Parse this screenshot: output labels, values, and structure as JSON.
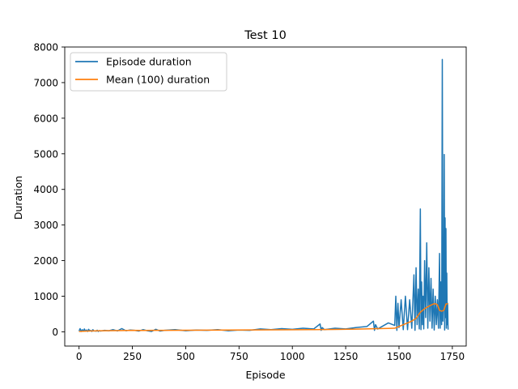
{
  "chart_data": {
    "type": "line",
    "title": "Test 10",
    "xlabel": "Episode",
    "ylabel": "Duration",
    "xlim": [
      -67,
      1815
    ],
    "ylim": [
      -400,
      8000
    ],
    "xticks": [
      0,
      250,
      500,
      750,
      1000,
      1250,
      1500,
      1750
    ],
    "yticks": [
      0,
      1000,
      2000,
      3000,
      4000,
      5000,
      6000,
      7000,
      8000
    ],
    "legend_position": "upper-left",
    "grid": false,
    "series": [
      {
        "name": "Episode duration",
        "color": "#1f77b4",
        "x": [
          0,
          5,
          10,
          15,
          20,
          25,
          30,
          35,
          40,
          45,
          50,
          55,
          60,
          65,
          70,
          75,
          80,
          85,
          90,
          95,
          100,
          120,
          140,
          160,
          180,
          200,
          220,
          240,
          260,
          280,
          300,
          320,
          340,
          360,
          380,
          400,
          450,
          500,
          550,
          600,
          650,
          700,
          750,
          800,
          850,
          900,
          950,
          1000,
          1050,
          1100,
          1130,
          1135,
          1140,
          1150,
          1200,
          1250,
          1300,
          1350,
          1380,
          1385,
          1390,
          1400,
          1450,
          1480,
          1485,
          1490,
          1495,
          1500,
          1510,
          1520,
          1530,
          1540,
          1550,
          1560,
          1570,
          1575,
          1580,
          1585,
          1590,
          1595,
          1600,
          1603,
          1606,
          1610,
          1613,
          1616,
          1620,
          1625,
          1630,
          1635,
          1640,
          1645,
          1650,
          1655,
          1660,
          1665,
          1670,
          1675,
          1680,
          1685,
          1690,
          1693,
          1696,
          1700,
          1703,
          1706,
          1710,
          1712,
          1714,
          1716,
          1718,
          1720,
          1722,
          1724,
          1726,
          1728,
          1730
        ],
        "y": [
          20,
          90,
          10,
          60,
          15,
          80,
          20,
          50,
          10,
          70,
          25,
          40,
          10,
          60,
          20,
          30,
          15,
          45,
          10,
          35,
          20,
          40,
          30,
          60,
          25,
          90,
          30,
          50,
          40,
          20,
          60,
          30,
          10,
          70,
          20,
          40,
          60,
          30,
          50,
          40,
          60,
          30,
          50,
          40,
          80,
          60,
          90,
          70,
          100,
          80,
          220,
          40,
          120,
          60,
          100,
          80,
          120,
          150,
          300,
          40,
          200,
          80,
          250,
          180,
          1000,
          40,
          800,
          120,
          900,
          60,
          1000,
          60,
          900,
          100,
          1600,
          40,
          1800,
          200,
          1200,
          80,
          3450,
          60,
          1400,
          200,
          1000,
          80,
          2000,
          400,
          2500,
          100,
          1800,
          300,
          1500,
          100,
          1200,
          50,
          1000,
          200,
          900,
          100,
          2200,
          100,
          1400,
          200,
          7650,
          300,
          1200,
          4980,
          50,
          3200,
          400,
          2900,
          100,
          1650,
          200,
          800,
          60
        ]
      },
      {
        "name": "Mean (100) duration",
        "color": "#ff7f0e",
        "x": [
          0,
          20,
          40,
          60,
          80,
          100,
          150,
          200,
          250,
          300,
          350,
          400,
          500,
          600,
          700,
          800,
          900,
          1000,
          1100,
          1200,
          1300,
          1400,
          1450,
          1480,
          1500,
          1520,
          1540,
          1560,
          1580,
          1600,
          1620,
          1640,
          1660,
          1670,
          1680,
          1690,
          1700,
          1710,
          1720,
          1730
        ],
        "y": [
          10,
          15,
          20,
          25,
          28,
          30,
          32,
          35,
          40,
          38,
          40,
          42,
          45,
          48,
          50,
          52,
          55,
          58,
          62,
          68,
          75,
          90,
          95,
          100,
          150,
          200,
          250,
          300,
          380,
          550,
          650,
          720,
          780,
          790,
          760,
          600,
          580,
          600,
          780,
          790
        ]
      }
    ]
  }
}
